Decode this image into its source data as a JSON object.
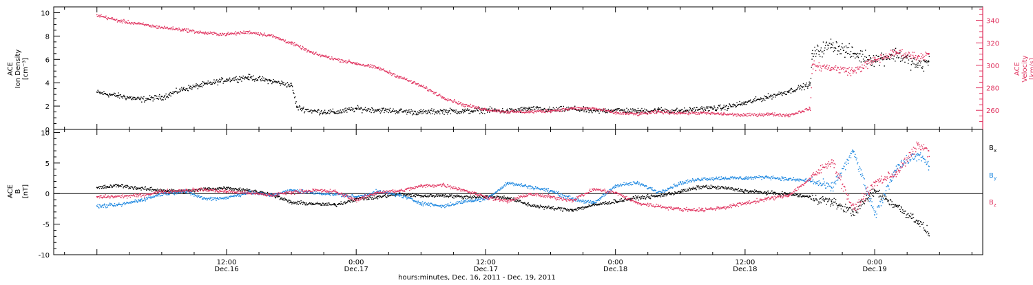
{
  "chart_data": [
    {
      "type": "scatter",
      "panel": "top",
      "ylabel_lines": [
        "ACE",
        "Ion Density",
        "[cm⁻³]"
      ],
      "y2label_lines": [
        "ACE",
        "Velocity",
        "[km/s]"
      ],
      "ylim": [
        0,
        10.5
      ],
      "y_ticks": [
        "0",
        "2",
        "4",
        "6",
        "8",
        "10"
      ],
      "y2lim": [
        243,
        352
      ],
      "y2_ticks": [
        "260",
        "280",
        "300",
        "320",
        "340"
      ],
      "colors": {
        "density": "#000000",
        "velocity": "#e0335f"
      },
      "series": [
        {
          "id": "density",
          "color": "#000000",
          "x_hours": [
            0,
            2,
            4,
            6,
            8,
            10,
            12,
            14,
            16,
            18,
            18.5,
            20,
            22,
            24,
            26,
            28,
            30,
            32,
            34,
            36,
            38,
            40,
            42,
            44,
            46,
            48,
            50,
            52,
            54,
            56,
            58,
            60,
            62,
            64,
            66,
            66.2,
            68,
            70,
            72,
            74,
            76,
            77
          ],
          "values": [
            3.2,
            2.9,
            2.6,
            2.8,
            3.5,
            3.9,
            4.3,
            4.5,
            4.2,
            3.8,
            1.9,
            1.6,
            1.5,
            1.8,
            1.7,
            1.6,
            1.5,
            1.6,
            1.6,
            1.7,
            1.6,
            1.8,
            1.7,
            1.8,
            1.6,
            1.7,
            1.6,
            1.7,
            1.6,
            1.8,
            1.9,
            2.3,
            2.8,
            3.3,
            3.9,
            6.5,
            7.3,
            6.5,
            6.0,
            6.5,
            5.5,
            5.8
          ]
        },
        {
          "id": "velocity",
          "color": "#e0335f",
          "x_hours": [
            0,
            2,
            4,
            6,
            8,
            10,
            12,
            14,
            16,
            18,
            20,
            22,
            24,
            26,
            28,
            30,
            32,
            34,
            36,
            38,
            40,
            42,
            44,
            46,
            48,
            50,
            52,
            54,
            56,
            58,
            60,
            62,
            64,
            66,
            66.2,
            68,
            70,
            72,
            74,
            76,
            77
          ],
          "values": [
            345,
            340,
            337,
            334,
            332,
            329,
            328,
            330,
            327,
            320,
            311,
            306,
            302,
            298,
            290,
            282,
            272,
            265,
            261,
            259,
            259,
            260,
            262,
            262,
            258,
            257,
            259,
            258,
            258,
            257,
            256,
            257,
            256,
            262,
            300,
            298,
            295,
            305,
            312,
            308,
            310
          ]
        }
      ]
    },
    {
      "type": "scatter",
      "panel": "bottom",
      "ylabel_lines": [
        "ACE",
        "B",
        "[nT]"
      ],
      "ylim": [
        -10,
        10.5
      ],
      "y_ticks": [
        "-10",
        "-5",
        "0",
        "5",
        "10"
      ],
      "zero_line": true,
      "series": [
        {
          "name": "Bx",
          "color": "#000000",
          "x_hours": [
            0,
            2,
            4,
            6,
            8,
            10,
            12,
            14,
            16,
            18,
            20,
            22,
            24,
            26,
            28,
            30,
            32,
            34,
            36,
            38,
            40,
            42,
            44,
            46,
            48,
            50,
            52,
            54,
            56,
            58,
            60,
            62,
            64,
            66,
            68,
            70,
            72,
            74,
            76,
            77
          ],
          "values": [
            1.0,
            1.4,
            0.9,
            0.6,
            0.4,
            0.8,
            1.0,
            0.6,
            0.0,
            -1.4,
            -1.6,
            -1.8,
            -0.8,
            -0.5,
            0.0,
            -0.3,
            -0.2,
            -0.5,
            -0.4,
            -0.6,
            -1.8,
            -2.3,
            -2.6,
            -1.8,
            -1.2,
            -0.6,
            -0.3,
            0.4,
            1.2,
            1.0,
            0.5,
            0.2,
            0.0,
            -0.5,
            -1.3,
            -3.0,
            0.5,
            -2.0,
            -4.5,
            -6.5
          ]
        },
        {
          "name": "By",
          "color": "#1a86e0",
          "x_hours": [
            0,
            2,
            4,
            6,
            8,
            10,
            12,
            14,
            16,
            18,
            20,
            22,
            24,
            26,
            28,
            30,
            32,
            34,
            36,
            38,
            40,
            42,
            44,
            46,
            48,
            50,
            52,
            54,
            56,
            58,
            60,
            62,
            64,
            66,
            68,
            70,
            72,
            74,
            76,
            77
          ],
          "values": [
            -2.0,
            -1.8,
            -1.0,
            0.0,
            0.5,
            -0.8,
            -0.6,
            0.3,
            -0.2,
            0.6,
            0.2,
            0.0,
            -0.5,
            0.4,
            -0.2,
            -1.5,
            -2.0,
            -1.2,
            -0.8,
            1.8,
            1.2,
            0.5,
            -0.8,
            -1.5,
            1.4,
            1.8,
            0.3,
            1.8,
            2.5,
            2.6,
            2.6,
            2.8,
            2.4,
            2.2,
            1.0,
            7.0,
            -3.5,
            4.5,
            6.5,
            4.5
          ]
        },
        {
          "name": "Bz",
          "color": "#e0335f",
          "x_hours": [
            0,
            2,
            4,
            6,
            8,
            10,
            12,
            14,
            16,
            18,
            20,
            22,
            24,
            26,
            28,
            30,
            32,
            34,
            36,
            38,
            40,
            42,
            44,
            46,
            48,
            50,
            52,
            54,
            56,
            58,
            60,
            62,
            64,
            66,
            68,
            70,
            72,
            74,
            76,
            77
          ],
          "values": [
            -0.5,
            -0.4,
            -0.2,
            0.4,
            0.6,
            0.7,
            0.4,
            0.2,
            -0.2,
            0.3,
            0.6,
            0.4,
            -1.0,
            0.3,
            0.5,
            1.3,
            1.5,
            0.6,
            -0.5,
            -1.2,
            0.0,
            -0.5,
            -1.0,
            0.8,
            0.2,
            -1.5,
            -2.0,
            -2.5,
            -2.6,
            -2.2,
            -1.5,
            -0.8,
            -0.2,
            2.5,
            5.5,
            -2.5,
            1.8,
            3.5,
            8.0,
            7.0
          ]
        }
      ],
      "legend_placement": "right"
    }
  ],
  "x_axis": {
    "range_hours": [
      -4,
      82
    ],
    "ticks": [
      {
        "hours": 12,
        "line1": "12:00",
        "line2": "Dec.16"
      },
      {
        "hours": 24,
        "line1": "0:00",
        "line2": "Dec.17"
      },
      {
        "hours": 36,
        "line1": "12:00",
        "line2": "Dec.17"
      },
      {
        "hours": 48,
        "line1": "0:00",
        "line2": "Dec.18"
      },
      {
        "hours": 60,
        "line1": "12:00",
        "line2": "Dec.18"
      },
      {
        "hours": 72,
        "line1": "0:00",
        "line2": "Dec.19"
      }
    ],
    "xlabel": "hours:minutes, Dec. 16, 2011 - Dec. 19, 2011"
  }
}
